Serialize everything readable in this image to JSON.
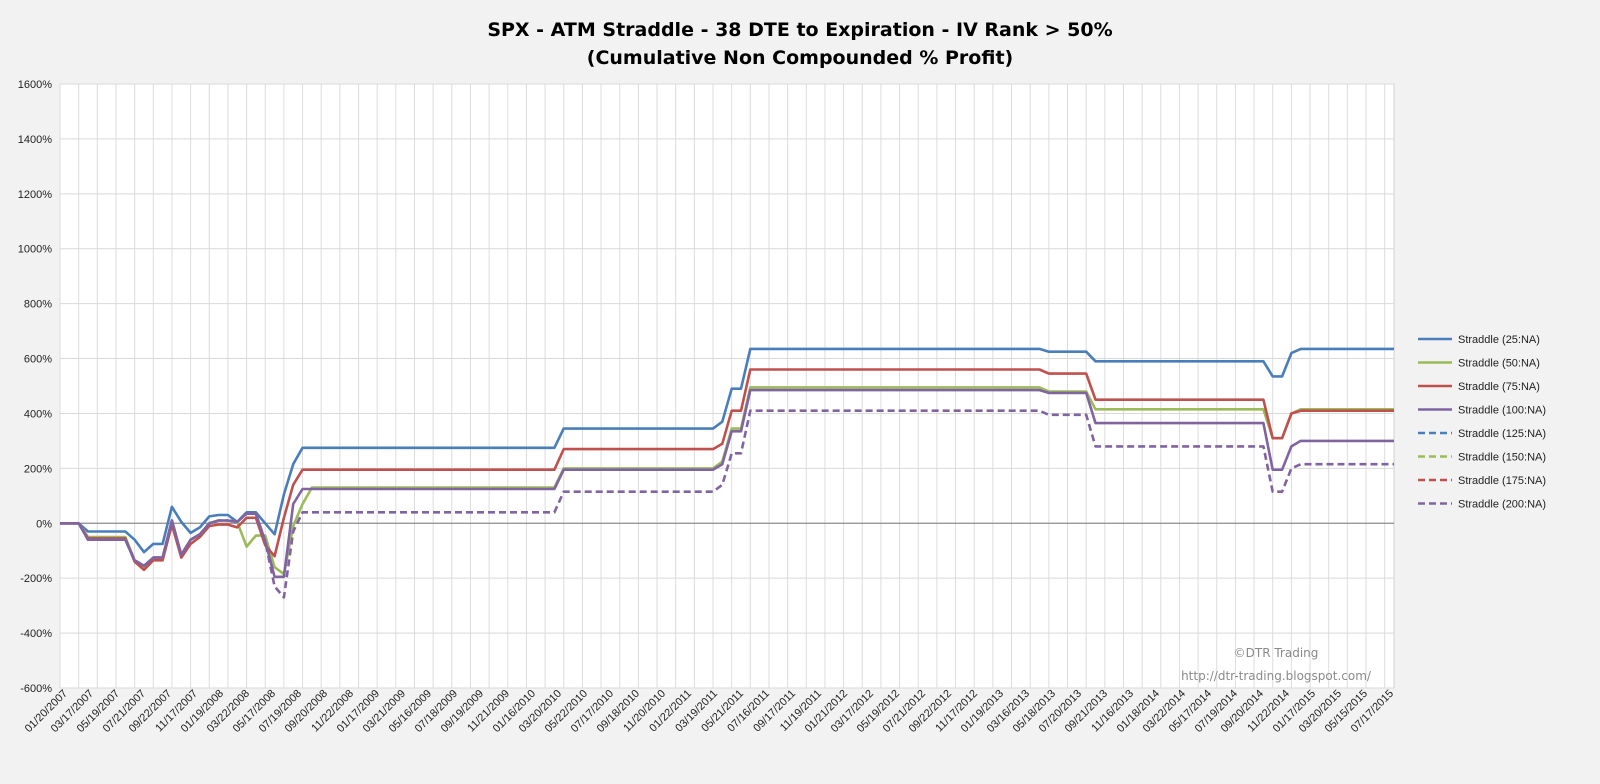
{
  "chart_data": {
    "type": "line",
    "title": "SPX - ATM Straddle - 38 DTE to Expiration - IV Rank > 50%",
    "subtitle": "(Cumulative Non Compounded % Profit)",
    "xlabel": "",
    "ylabel": "",
    "ylim": [
      -600,
      1600
    ],
    "y_ticks": [
      "-600%",
      "-400%",
      "-200%",
      "0%",
      "200%",
      "400%",
      "600%",
      "800%",
      "1000%",
      "1200%",
      "1400%",
      "1600%"
    ],
    "x_tick_labels": [
      "01/20/2007",
      "03/17/2007",
      "05/19/2007",
      "07/21/2007",
      "09/22/2007",
      "11/17/2007",
      "01/19/2008",
      "03/22/2008",
      "05/17/2008",
      "07/19/2008",
      "09/20/2008",
      "11/22/2008",
      "01/17/2009",
      "03/21/2009",
      "05/16/2009",
      "07/18/2009",
      "09/19/2009",
      "11/21/2009",
      "01/16/2010",
      "03/20/2010",
      "05/22/2010",
      "07/17/2010",
      "09/18/2010",
      "11/20/2010",
      "01/22/2011",
      "03/19/2011",
      "05/21/2011",
      "07/16/2011",
      "09/17/2011",
      "11/19/2011",
      "01/21/2012",
      "03/17/2012",
      "05/19/2012",
      "07/21/2012",
      "09/22/2012",
      "11/17/2012",
      "01/19/2013",
      "03/16/2013",
      "05/18/2013",
      "07/20/2013",
      "09/21/2013",
      "11/16/2013",
      "01/18/2014",
      "03/22/2014",
      "05/17/2014",
      "07/19/2014",
      "09/20/2014",
      "11/22/2014",
      "01/17/2015",
      "03/20/2015",
      "05/15/2015",
      "07/17/2015"
    ],
    "grid": true,
    "legend_position": "right",
    "series": [
      {
        "name": "Straddle  (25:NA)",
        "color": "#4a7ebb",
        "dashed": false,
        "values": [
          0,
          0,
          0,
          -30,
          -30,
          -30,
          -30,
          -30,
          -60,
          -105,
          -75,
          -75,
          60,
          5,
          -35,
          -15,
          25,
          30,
          30,
          5,
          40,
          40,
          0,
          -40,
          105,
          215,
          275,
          275,
          275,
          275,
          275,
          275,
          275,
          275,
          275,
          275,
          275,
          275,
          275,
          275,
          275,
          275,
          275,
          275,
          275,
          275,
          275,
          275,
          275,
          275,
          275,
          275,
          275,
          275,
          345,
          345,
          345,
          345,
          345,
          345,
          345,
          345,
          345,
          345,
          345,
          345,
          345,
          345,
          345,
          345,
          345,
          370,
          490,
          490,
          635,
          635,
          635,
          635,
          635,
          635,
          635,
          635,
          635,
          635,
          635,
          635,
          635,
          635,
          635,
          635,
          635,
          635,
          635,
          635,
          635,
          635,
          635,
          635,
          635,
          635,
          635,
          635,
          635,
          635,
          635,
          635,
          625,
          625,
          625,
          625,
          625,
          590,
          590,
          590,
          590,
          590,
          590,
          590,
          590,
          590,
          590,
          590,
          590,
          590,
          590,
          590,
          590,
          590,
          590,
          590,
          535,
          535,
          620,
          635,
          635,
          635,
          635,
          635,
          635,
          635,
          635,
          635,
          635,
          635
        ]
      },
      {
        "name": "Straddle  (50:NA)",
        "color": "#9bbb59",
        "dashed": false,
        "values": [
          0,
          0,
          0,
          -50,
          -50,
          -50,
          -50,
          -50,
          -135,
          -160,
          -125,
          -125,
          10,
          -115,
          -60,
          -40,
          0,
          10,
          10,
          5,
          -85,
          -45,
          -45,
          -160,
          -185,
          -10,
          70,
          130,
          130,
          130,
          130,
          130,
          130,
          130,
          130,
          130,
          130,
          130,
          130,
          130,
          130,
          130,
          130,
          130,
          130,
          130,
          130,
          130,
          130,
          130,
          130,
          130,
          130,
          130,
          200,
          200,
          200,
          200,
          200,
          200,
          200,
          200,
          200,
          200,
          200,
          200,
          200,
          200,
          200,
          200,
          200,
          225,
          345,
          345,
          495,
          495,
          495,
          495,
          495,
          495,
          495,
          495,
          495,
          495,
          495,
          495,
          495,
          495,
          495,
          495,
          495,
          495,
          495,
          495,
          495,
          495,
          495,
          495,
          495,
          495,
          495,
          495,
          495,
          495,
          495,
          495,
          480,
          480,
          480,
          480,
          480,
          415,
          415,
          415,
          415,
          415,
          415,
          415,
          415,
          415,
          415,
          415,
          415,
          415,
          415,
          415,
          415,
          415,
          415,
          415,
          310,
          310,
          400,
          415,
          415,
          415,
          415,
          415,
          415,
          415,
          415,
          415,
          415,
          415
        ]
      },
      {
        "name": "Straddle  (75:NA)",
        "color": "#c0504d",
        "dashed": false,
        "values": [
          0,
          0,
          0,
          -55,
          -55,
          -55,
          -55,
          -55,
          -140,
          -170,
          -135,
          -135,
          -5,
          -125,
          -75,
          -50,
          -10,
          -5,
          -5,
          -15,
          20,
          20,
          -80,
          -120,
          20,
          140,
          195,
          195,
          195,
          195,
          195,
          195,
          195,
          195,
          195,
          195,
          195,
          195,
          195,
          195,
          195,
          195,
          195,
          195,
          195,
          195,
          195,
          195,
          195,
          195,
          195,
          195,
          195,
          195,
          270,
          270,
          270,
          270,
          270,
          270,
          270,
          270,
          270,
          270,
          270,
          270,
          270,
          270,
          270,
          270,
          270,
          290,
          410,
          410,
          560,
          560,
          560,
          560,
          560,
          560,
          560,
          560,
          560,
          560,
          560,
          560,
          560,
          560,
          560,
          560,
          560,
          560,
          560,
          560,
          560,
          560,
          560,
          560,
          560,
          560,
          560,
          560,
          560,
          560,
          560,
          560,
          545,
          545,
          545,
          545,
          545,
          450,
          450,
          450,
          450,
          450,
          450,
          450,
          450,
          450,
          450,
          450,
          450,
          450,
          450,
          450,
          450,
          450,
          450,
          450,
          310,
          310,
          400,
          410,
          410,
          410,
          410,
          410,
          410,
          410,
          410,
          410,
          410,
          410
        ]
      },
      {
        "name": "Straddle  (100:NA)",
        "color": "#8064a2",
        "dashed": false,
        "values": [
          0,
          0,
          0,
          -60,
          -60,
          -60,
          -60,
          -60,
          -135,
          -155,
          -125,
          -125,
          10,
          -115,
          -60,
          -40,
          0,
          10,
          10,
          5,
          35,
          35,
          -65,
          -195,
          -195,
          70,
          125,
          125,
          125,
          125,
          125,
          125,
          125,
          125,
          125,
          125,
          125,
          125,
          125,
          125,
          125,
          125,
          125,
          125,
          125,
          125,
          125,
          125,
          125,
          125,
          125,
          125,
          125,
          125,
          195,
          195,
          195,
          195,
          195,
          195,
          195,
          195,
          195,
          195,
          195,
          195,
          195,
          195,
          195,
          195,
          195,
          215,
          335,
          335,
          485,
          485,
          485,
          485,
          485,
          485,
          485,
          485,
          485,
          485,
          485,
          485,
          485,
          485,
          485,
          485,
          485,
          485,
          485,
          485,
          485,
          485,
          485,
          485,
          485,
          485,
          485,
          485,
          485,
          485,
          485,
          485,
          475,
          475,
          475,
          475,
          475,
          365,
          365,
          365,
          365,
          365,
          365,
          365,
          365,
          365,
          365,
          365,
          365,
          365,
          365,
          365,
          365,
          365,
          365,
          365,
          195,
          195,
          280,
          300,
          300,
          300,
          300,
          300,
          300,
          300,
          300,
          300,
          300,
          300
        ]
      },
      {
        "name": "Straddle  (125:NA)",
        "color": "#4a7ebb",
        "dashed": true,
        "values": []
      },
      {
        "name": "Straddle  (150:NA)",
        "color": "#9bbb59",
        "dashed": true,
        "values": []
      },
      {
        "name": "Straddle  (175:NA)",
        "color": "#c0504d",
        "dashed": true,
        "values": []
      },
      {
        "name": "Straddle  (200:NA)",
        "color": "#8064a2",
        "dashed": true,
        "values": [
          0,
          0,
          0,
          -60,
          -60,
          -60,
          -60,
          -60,
          -135,
          -155,
          -125,
          -125,
          10,
          -115,
          -60,
          -40,
          0,
          10,
          10,
          5,
          35,
          35,
          -65,
          -230,
          -270,
          -30,
          40,
          40,
          40,
          40,
          40,
          40,
          40,
          40,
          40,
          40,
          40,
          40,
          40,
          40,
          40,
          40,
          40,
          40,
          40,
          40,
          40,
          40,
          40,
          40,
          40,
          40,
          40,
          40,
          115,
          115,
          115,
          115,
          115,
          115,
          115,
          115,
          115,
          115,
          115,
          115,
          115,
          115,
          115,
          115,
          115,
          140,
          255,
          255,
          410,
          410,
          410,
          410,
          410,
          410,
          410,
          410,
          410,
          410,
          410,
          410,
          410,
          410,
          410,
          410,
          410,
          410,
          410,
          410,
          410,
          410,
          410,
          410,
          410,
          410,
          410,
          410,
          410,
          410,
          410,
          410,
          395,
          395,
          395,
          395,
          395,
          280,
          280,
          280,
          280,
          280,
          280,
          280,
          280,
          280,
          280,
          280,
          280,
          280,
          280,
          280,
          280,
          280,
          280,
          280,
          115,
          115,
          200,
          215,
          215,
          215,
          215,
          215,
          215,
          215,
          215,
          215,
          215,
          215
        ]
      }
    ]
  },
  "watermark": {
    "copyright": "©DTR Trading",
    "url": "http://dtr-trading.blogspot.com/"
  }
}
